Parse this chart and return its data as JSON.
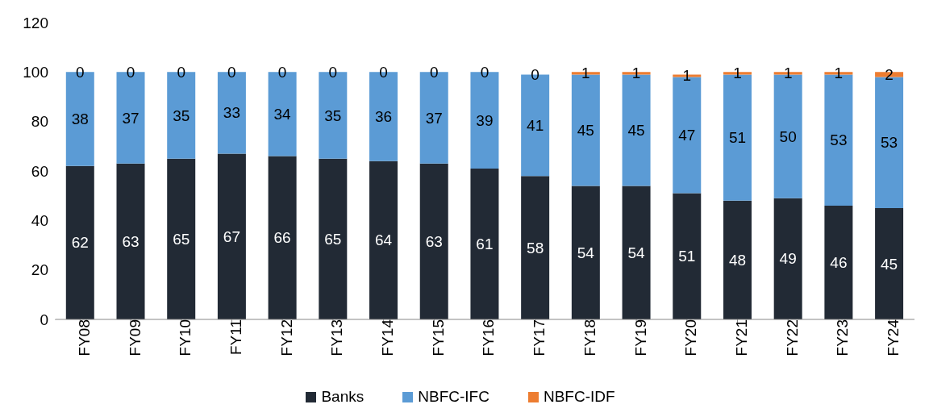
{
  "chart_data": {
    "type": "bar",
    "stacked": true,
    "categories": [
      "FY08",
      "FY09",
      "FY10",
      "FY11",
      "FY12",
      "FY13",
      "FY14",
      "FY15",
      "FY16",
      "FY17",
      "FY18",
      "FY19",
      "FY20",
      "FY21",
      "FY22",
      "FY23",
      "FY24"
    ],
    "series": [
      {
        "name": "Banks",
        "color": "#222a35",
        "values": [
          62,
          63,
          65,
          67,
          66,
          65,
          64,
          63,
          61,
          58,
          54,
          54,
          51,
          48,
          49,
          46,
          45
        ]
      },
      {
        "name": "NBFC-IFC",
        "color": "#5b9bd5",
        "values": [
          38,
          37,
          35,
          33,
          34,
          35,
          36,
          37,
          39,
          41,
          45,
          45,
          47,
          51,
          50,
          53,
          53
        ]
      },
      {
        "name": "NBFC-IDF",
        "color": "#ed7d31",
        "values": [
          0,
          0,
          0,
          0,
          0,
          0,
          0,
          0,
          0,
          0,
          1,
          1,
          1,
          1,
          1,
          1,
          2
        ]
      }
    ],
    "ylim": [
      0,
      120
    ],
    "yticks": [
      0,
      20,
      40,
      60,
      80,
      100,
      120
    ],
    "grid": false,
    "legend": "bottom",
    "data_labels": true
  }
}
